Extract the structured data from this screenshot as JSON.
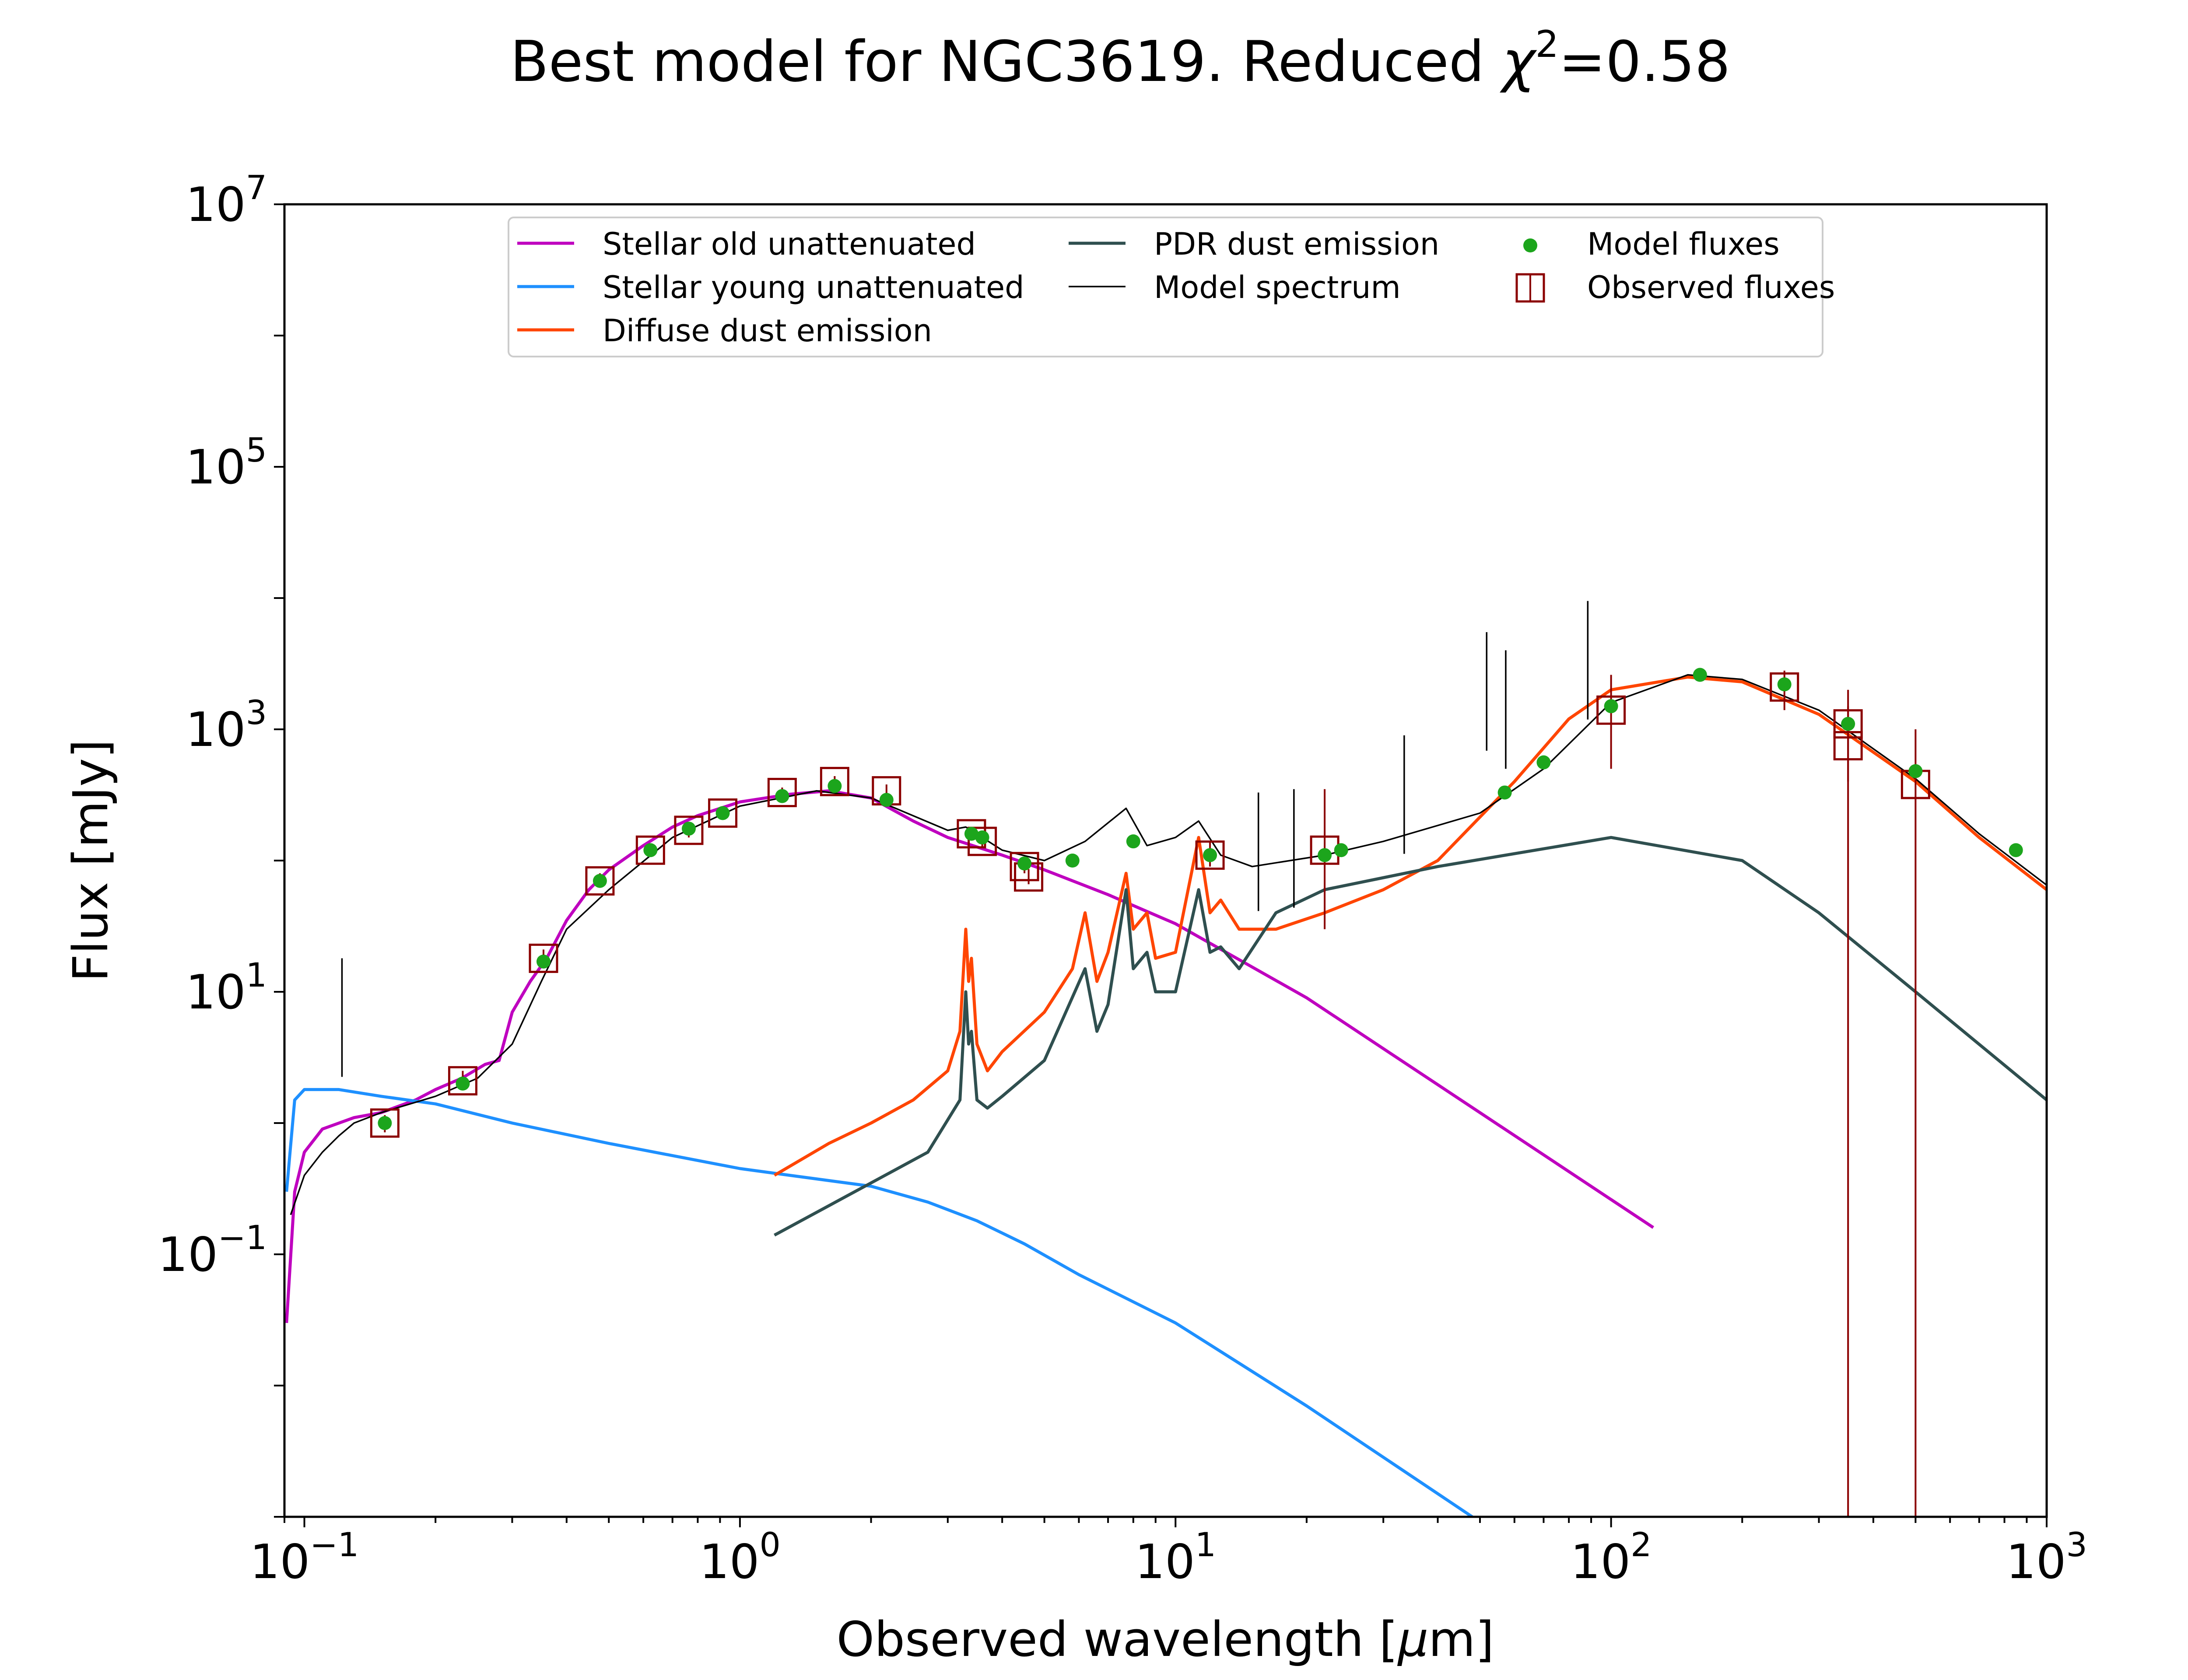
{
  "chart_data": {
    "type": "line",
    "title": "Best model for NGC3619. Reduced χ²=0.58",
    "title_parts": {
      "prefix": "Best model for NGC3619. Reduced ",
      "chi": "χ",
      "sup": "2",
      "suffix": "=0.58"
    },
    "xlabel": "Observed wavelength [μm]",
    "xlabel_parts": {
      "prefix": "Observed wavelength [",
      "mu": "μ",
      "suffix": "m]"
    },
    "ylabel": "Flux [mJy]",
    "x_scale": "log",
    "y_scale": "log",
    "xlim": [
      0.09,
      1000
    ],
    "ylim": [
      0.001,
      10000000
    ],
    "x_ticks": [
      {
        "value": 0.1,
        "base": "10",
        "exp": "−1"
      },
      {
        "value": 1,
        "base": "10",
        "exp": "0"
      },
      {
        "value": 10,
        "base": "10",
        "exp": "1"
      },
      {
        "value": 100,
        "base": "10",
        "exp": "2"
      },
      {
        "value": 1000,
        "base": "10",
        "exp": "3"
      }
    ],
    "y_ticks": [
      {
        "value": 0.1,
        "base": "10",
        "exp": "−1"
      },
      {
        "value": 10,
        "base": "10",
        "exp": "1"
      },
      {
        "value": 1000,
        "base": "10",
        "exp": "3"
      },
      {
        "value": 100000,
        "base": "10",
        "exp": "5"
      },
      {
        "value": 10000000,
        "base": "10",
        "exp": "7"
      }
    ],
    "grid": false,
    "legend_placement": "top-center",
    "legend": [
      {
        "label": "Stellar old unattenuated",
        "kind": "line",
        "color": "#bf00bf"
      },
      {
        "label": "Stellar young unattenuated",
        "kind": "line",
        "color": "#1e90ff"
      },
      {
        "label": "Diffuse dust emission",
        "kind": "line",
        "color": "#ff4500"
      },
      {
        "label": "PDR dust emission",
        "kind": "line",
        "color": "#2f4f4f"
      },
      {
        "label": "Model spectrum",
        "kind": "thinline",
        "color": "#000000"
      },
      {
        "label": "Model fluxes",
        "kind": "dot",
        "color": "#1ca51c"
      },
      {
        "label": "Observed fluxes",
        "kind": "square",
        "color": "#8b0000"
      }
    ],
    "series": [
      {
        "name": "Stellar old unattenuated",
        "color": "#bf00bf",
        "x": [
          0.091,
          0.095,
          0.1,
          0.11,
          0.13,
          0.15,
          0.18,
          0.2,
          0.23,
          0.26,
          0.28,
          0.3,
          0.33,
          0.36,
          0.4,
          0.45,
          0.5,
          0.6,
          0.7,
          0.8,
          1.0,
          1.3,
          1.6,
          2.0,
          2.5,
          3.0,
          4.0,
          5.0,
          7.0,
          10,
          20,
          50,
          125
        ],
        "y": [
          0.03,
          0.3,
          0.6,
          0.9,
          1.1,
          1.2,
          1.5,
          1.8,
          2.2,
          2.8,
          3.0,
          7,
          12,
          18,
          35,
          60,
          85,
          130,
          180,
          220,
          280,
          320,
          340,
          300,
          200,
          150,
          110,
          85,
          55,
          33,
          9,
          1.2,
          0.16
        ]
      },
      {
        "name": "Stellar young unattenuated",
        "color": "#1e90ff",
        "x": [
          0.091,
          0.095,
          0.1,
          0.12,
          0.15,
          0.2,
          0.3,
          0.5,
          1.0,
          1.3,
          2.0,
          2.7,
          3.5,
          4.5,
          6.0,
          10,
          20,
          48
        ],
        "y": [
          0.3,
          1.5,
          1.8,
          1.8,
          1.6,
          1.4,
          1.0,
          0.7,
          0.45,
          0.4,
          0.33,
          0.25,
          0.18,
          0.12,
          0.07,
          0.03,
          0.007,
          0.001
        ]
      },
      {
        "name": "Diffuse dust emission",
        "color": "#ff4500",
        "x": [
          1.2,
          1.6,
          2.0,
          2.5,
          3.0,
          3.2,
          3.3,
          3.35,
          3.4,
          3.5,
          3.7,
          4.0,
          5.0,
          5.8,
          6.2,
          6.6,
          7.0,
          7.7,
          8.0,
          8.6,
          9.0,
          10,
          11.3,
          12,
          12.7,
          14,
          17,
          22,
          30,
          40,
          60,
          80,
          100,
          150,
          200,
          300,
          500,
          700,
          1000
        ],
        "y": [
          0.4,
          0.7,
          1.0,
          1.5,
          2.5,
          5,
          30,
          12,
          18,
          4,
          2.5,
          3.5,
          7,
          15,
          40,
          12,
          20,
          80,
          30,
          40,
          18,
          20,
          150,
          40,
          50,
          30,
          30,
          40,
          60,
          100,
          400,
          1200,
          2000,
          2500,
          2300,
          1300,
          400,
          150,
          60
        ]
      },
      {
        "name": "PDR dust emission",
        "color": "#2f4f4f",
        "x": [
          1.2,
          2.0,
          2.7,
          3.2,
          3.3,
          3.35,
          3.4,
          3.5,
          3.7,
          4.0,
          5.0,
          6.2,
          6.6,
          7.0,
          7.7,
          8.0,
          8.6,
          9.0,
          10,
          11.3,
          12,
          12.7,
          14,
          17,
          22,
          40,
          100,
          200,
          300,
          500,
          1000
        ],
        "y": [
          0.14,
          0.35,
          0.6,
          1.5,
          10,
          4,
          5,
          1.5,
          1.3,
          1.6,
          3,
          15,
          5,
          8,
          60,
          15,
          20,
          10,
          10,
          60,
          20,
          22,
          15,
          40,
          60,
          90,
          150,
          100,
          40,
          10,
          1.5
        ]
      },
      {
        "name": "Model spectrum",
        "color": "#000000",
        "x": [
          0.093,
          0.1,
          0.11,
          0.12,
          0.13,
          0.15,
          0.2,
          0.25,
          0.3,
          0.35,
          0.4,
          0.5,
          0.7,
          1.0,
          1.5,
          2.0,
          3.0,
          3.3,
          4.0,
          5.0,
          6.2,
          7.7,
          8.6,
          10,
          11.3,
          12.7,
          15,
          22,
          30,
          50,
          70,
          100,
          150,
          200,
          300,
          500,
          700,
          1000
        ],
        "y": [
          0.2,
          0.4,
          0.6,
          0.8,
          1.0,
          1.2,
          1.6,
          2.2,
          4,
          12,
          30,
          60,
          150,
          260,
          340,
          300,
          170,
          180,
          120,
          100,
          140,
          250,
          130,
          150,
          200,
          110,
          90,
          110,
          140,
          230,
          500,
          1600,
          2600,
          2400,
          1400,
          420,
          160,
          65
        ]
      }
    ],
    "spectrum_lines": [
      {
        "x": 0.122,
        "y": 18
      },
      {
        "x": 15.5,
        "y": 330
      },
      {
        "x": 18.7,
        "y": 350
      },
      {
        "x": 33.5,
        "y": 900
      },
      {
        "x": 51.8,
        "y": 5500
      },
      {
        "x": 57.3,
        "y": 4000
      },
      {
        "x": 88.4,
        "y": 9500
      }
    ],
    "model_fluxes": {
      "name": "Model fluxes",
      "color": "#1ca51c",
      "x": [
        0.153,
        0.231,
        0.354,
        0.477,
        0.623,
        0.763,
        0.913,
        1.25,
        1.65,
        2.17,
        3.4,
        3.6,
        4.5,
        5.8,
        8.0,
        12,
        22,
        24,
        57,
        70,
        100,
        160,
        250,
        350,
        500,
        850
      ],
      "y": [
        1.0,
        2.0,
        17,
        70,
        120,
        175,
        230,
        310,
        370,
        290,
        160,
        150,
        95,
        100,
        140,
        110,
        110,
        120,
        330,
        560,
        1500,
        2600,
        2200,
        1100,
        480,
        120
      ]
    },
    "observed_fluxes": {
      "name": "Observed fluxes",
      "color": "#8b0000",
      "points": [
        {
          "x": 0.153,
          "y": 1.0,
          "err_lo": 0.85,
          "err_hi": 1.15
        },
        {
          "x": 0.231,
          "y": 2.1,
          "err_lo": 1.8,
          "err_hi": 2.5
        },
        {
          "x": 0.354,
          "y": 18,
          "err_lo": 16,
          "err_hi": 21
        },
        {
          "x": 0.477,
          "y": 70,
          "err_lo": 62,
          "err_hi": 80
        },
        {
          "x": 0.623,
          "y": 120,
          "err_lo": 108,
          "err_hi": 135
        },
        {
          "x": 0.763,
          "y": 170,
          "err_lo": 150,
          "err_hi": 190
        },
        {
          "x": 0.913,
          "y": 230,
          "err_lo": 205,
          "err_hi": 255
        },
        {
          "x": 1.25,
          "y": 330,
          "err_lo": 300,
          "err_hi": 360
        },
        {
          "x": 1.65,
          "y": 400,
          "err_lo": 360,
          "err_hi": 440
        },
        {
          "x": 2.17,
          "y": 340,
          "err_lo": 300,
          "err_hi": 380
        },
        {
          "x": 3.4,
          "y": 160,
          "err_lo": 145,
          "err_hi": 180
        },
        {
          "x": 3.6,
          "y": 140,
          "err_lo": 125,
          "err_hi": 160
        },
        {
          "x": 4.5,
          "y": 90,
          "err_lo": 80,
          "err_hi": 102
        },
        {
          "x": 4.6,
          "y": 75,
          "err_lo": 66,
          "err_hi": 86
        },
        {
          "x": 12,
          "y": 110,
          "err_lo": 90,
          "err_hi": 140
        },
        {
          "x": 22,
          "y": 120,
          "err_lo": 30,
          "err_hi": 350
        },
        {
          "x": 100,
          "y": 1400,
          "err_lo": 500,
          "err_hi": 2600
        },
        {
          "x": 250,
          "y": 2100,
          "err_lo": 1400,
          "err_hi": 2800
        },
        {
          "x": 350,
          "y": 1100,
          "err_lo": 400,
          "err_hi": 2000
        },
        {
          "x": 350,
          "y": 750,
          "err_lo": 0.001,
          "err_hi": 1500
        },
        {
          "x": 500,
          "y": 380,
          "err_lo": 0.001,
          "err_hi": 1000
        }
      ]
    }
  }
}
